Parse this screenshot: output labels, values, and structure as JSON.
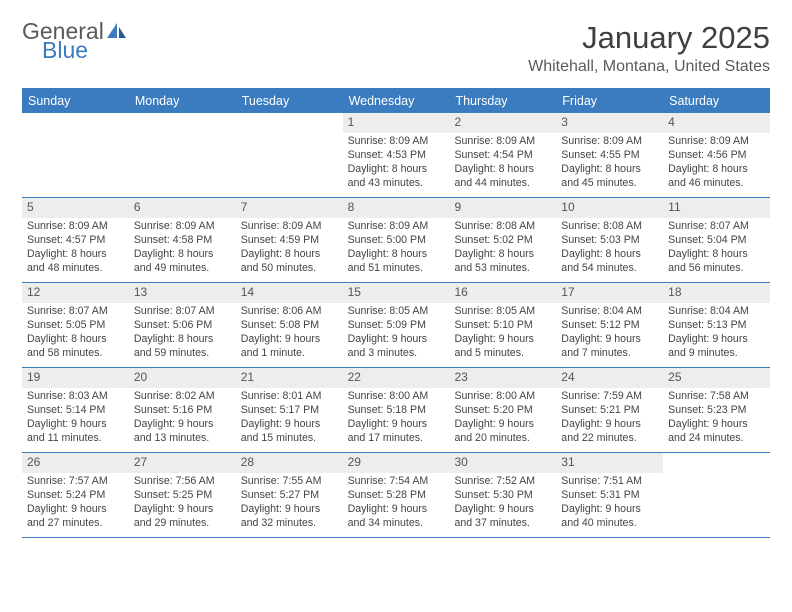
{
  "brand": {
    "word1": "General",
    "word2": "Blue",
    "word1_color": "#5a5a5a",
    "word2_color": "#3b7bbf",
    "icon_color": "#3b7bbf"
  },
  "title": "January 2025",
  "location": "Whitehall, Montana, United States",
  "accent_color": "#3b7bbf",
  "header_bg": "#3b7bbf",
  "header_text_color": "#ffffff",
  "daynum_bg": "#eceded",
  "body_text_color": "#444444",
  "day_names": [
    "Sunday",
    "Monday",
    "Tuesday",
    "Wednesday",
    "Thursday",
    "Friday",
    "Saturday"
  ],
  "weeks": [
    [
      {
        "n": "",
        "l1": "",
        "l2": "",
        "l3": "",
        "l4": "",
        "empty": true
      },
      {
        "n": "",
        "l1": "",
        "l2": "",
        "l3": "",
        "l4": "",
        "empty": true
      },
      {
        "n": "",
        "l1": "",
        "l2": "",
        "l3": "",
        "l4": "",
        "empty": true
      },
      {
        "n": "1",
        "l1": "Sunrise: 8:09 AM",
        "l2": "Sunset: 4:53 PM",
        "l3": "Daylight: 8 hours",
        "l4": "and 43 minutes."
      },
      {
        "n": "2",
        "l1": "Sunrise: 8:09 AM",
        "l2": "Sunset: 4:54 PM",
        "l3": "Daylight: 8 hours",
        "l4": "and 44 minutes."
      },
      {
        "n": "3",
        "l1": "Sunrise: 8:09 AM",
        "l2": "Sunset: 4:55 PM",
        "l3": "Daylight: 8 hours",
        "l4": "and 45 minutes."
      },
      {
        "n": "4",
        "l1": "Sunrise: 8:09 AM",
        "l2": "Sunset: 4:56 PM",
        "l3": "Daylight: 8 hours",
        "l4": "and 46 minutes."
      }
    ],
    [
      {
        "n": "5",
        "l1": "Sunrise: 8:09 AM",
        "l2": "Sunset: 4:57 PM",
        "l3": "Daylight: 8 hours",
        "l4": "and 48 minutes."
      },
      {
        "n": "6",
        "l1": "Sunrise: 8:09 AM",
        "l2": "Sunset: 4:58 PM",
        "l3": "Daylight: 8 hours",
        "l4": "and 49 minutes."
      },
      {
        "n": "7",
        "l1": "Sunrise: 8:09 AM",
        "l2": "Sunset: 4:59 PM",
        "l3": "Daylight: 8 hours",
        "l4": "and 50 minutes."
      },
      {
        "n": "8",
        "l1": "Sunrise: 8:09 AM",
        "l2": "Sunset: 5:00 PM",
        "l3": "Daylight: 8 hours",
        "l4": "and 51 minutes."
      },
      {
        "n": "9",
        "l1": "Sunrise: 8:08 AM",
        "l2": "Sunset: 5:02 PM",
        "l3": "Daylight: 8 hours",
        "l4": "and 53 minutes."
      },
      {
        "n": "10",
        "l1": "Sunrise: 8:08 AM",
        "l2": "Sunset: 5:03 PM",
        "l3": "Daylight: 8 hours",
        "l4": "and 54 minutes."
      },
      {
        "n": "11",
        "l1": "Sunrise: 8:07 AM",
        "l2": "Sunset: 5:04 PM",
        "l3": "Daylight: 8 hours",
        "l4": "and 56 minutes."
      }
    ],
    [
      {
        "n": "12",
        "l1": "Sunrise: 8:07 AM",
        "l2": "Sunset: 5:05 PM",
        "l3": "Daylight: 8 hours",
        "l4": "and 58 minutes."
      },
      {
        "n": "13",
        "l1": "Sunrise: 8:07 AM",
        "l2": "Sunset: 5:06 PM",
        "l3": "Daylight: 8 hours",
        "l4": "and 59 minutes."
      },
      {
        "n": "14",
        "l1": "Sunrise: 8:06 AM",
        "l2": "Sunset: 5:08 PM",
        "l3": "Daylight: 9 hours",
        "l4": "and 1 minute."
      },
      {
        "n": "15",
        "l1": "Sunrise: 8:05 AM",
        "l2": "Sunset: 5:09 PM",
        "l3": "Daylight: 9 hours",
        "l4": "and 3 minutes."
      },
      {
        "n": "16",
        "l1": "Sunrise: 8:05 AM",
        "l2": "Sunset: 5:10 PM",
        "l3": "Daylight: 9 hours",
        "l4": "and 5 minutes."
      },
      {
        "n": "17",
        "l1": "Sunrise: 8:04 AM",
        "l2": "Sunset: 5:12 PM",
        "l3": "Daylight: 9 hours",
        "l4": "and 7 minutes."
      },
      {
        "n": "18",
        "l1": "Sunrise: 8:04 AM",
        "l2": "Sunset: 5:13 PM",
        "l3": "Daylight: 9 hours",
        "l4": "and 9 minutes."
      }
    ],
    [
      {
        "n": "19",
        "l1": "Sunrise: 8:03 AM",
        "l2": "Sunset: 5:14 PM",
        "l3": "Daylight: 9 hours",
        "l4": "and 11 minutes."
      },
      {
        "n": "20",
        "l1": "Sunrise: 8:02 AM",
        "l2": "Sunset: 5:16 PM",
        "l3": "Daylight: 9 hours",
        "l4": "and 13 minutes."
      },
      {
        "n": "21",
        "l1": "Sunrise: 8:01 AM",
        "l2": "Sunset: 5:17 PM",
        "l3": "Daylight: 9 hours",
        "l4": "and 15 minutes."
      },
      {
        "n": "22",
        "l1": "Sunrise: 8:00 AM",
        "l2": "Sunset: 5:18 PM",
        "l3": "Daylight: 9 hours",
        "l4": "and 17 minutes."
      },
      {
        "n": "23",
        "l1": "Sunrise: 8:00 AM",
        "l2": "Sunset: 5:20 PM",
        "l3": "Daylight: 9 hours",
        "l4": "and 20 minutes."
      },
      {
        "n": "24",
        "l1": "Sunrise: 7:59 AM",
        "l2": "Sunset: 5:21 PM",
        "l3": "Daylight: 9 hours",
        "l4": "and 22 minutes."
      },
      {
        "n": "25",
        "l1": "Sunrise: 7:58 AM",
        "l2": "Sunset: 5:23 PM",
        "l3": "Daylight: 9 hours",
        "l4": "and 24 minutes."
      }
    ],
    [
      {
        "n": "26",
        "l1": "Sunrise: 7:57 AM",
        "l2": "Sunset: 5:24 PM",
        "l3": "Daylight: 9 hours",
        "l4": "and 27 minutes."
      },
      {
        "n": "27",
        "l1": "Sunrise: 7:56 AM",
        "l2": "Sunset: 5:25 PM",
        "l3": "Daylight: 9 hours",
        "l4": "and 29 minutes."
      },
      {
        "n": "28",
        "l1": "Sunrise: 7:55 AM",
        "l2": "Sunset: 5:27 PM",
        "l3": "Daylight: 9 hours",
        "l4": "and 32 minutes."
      },
      {
        "n": "29",
        "l1": "Sunrise: 7:54 AM",
        "l2": "Sunset: 5:28 PM",
        "l3": "Daylight: 9 hours",
        "l4": "and 34 minutes."
      },
      {
        "n": "30",
        "l1": "Sunrise: 7:52 AM",
        "l2": "Sunset: 5:30 PM",
        "l3": "Daylight: 9 hours",
        "l4": "and 37 minutes."
      },
      {
        "n": "31",
        "l1": "Sunrise: 7:51 AM",
        "l2": "Sunset: 5:31 PM",
        "l3": "Daylight: 9 hours",
        "l4": "and 40 minutes."
      },
      {
        "n": "",
        "l1": "",
        "l2": "",
        "l3": "",
        "l4": "",
        "empty": true
      }
    ]
  ]
}
